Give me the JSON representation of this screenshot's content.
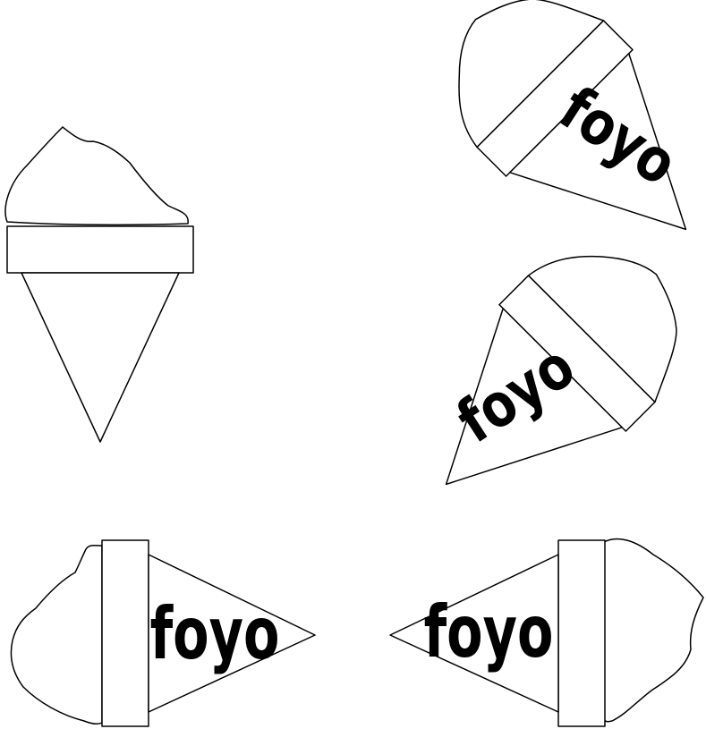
{
  "figure": {
    "background": "#ffffff",
    "stroke_color": "#000000",
    "cones": [
      {
        "id": "plain",
        "label": ""
      },
      {
        "id": "tilted-left",
        "label": "foyo"
      },
      {
        "id": "tilted-right",
        "label": "foyo"
      },
      {
        "id": "pointing-right",
        "label": "foyo"
      },
      {
        "id": "pointing-left",
        "label": "foyo"
      }
    ]
  }
}
